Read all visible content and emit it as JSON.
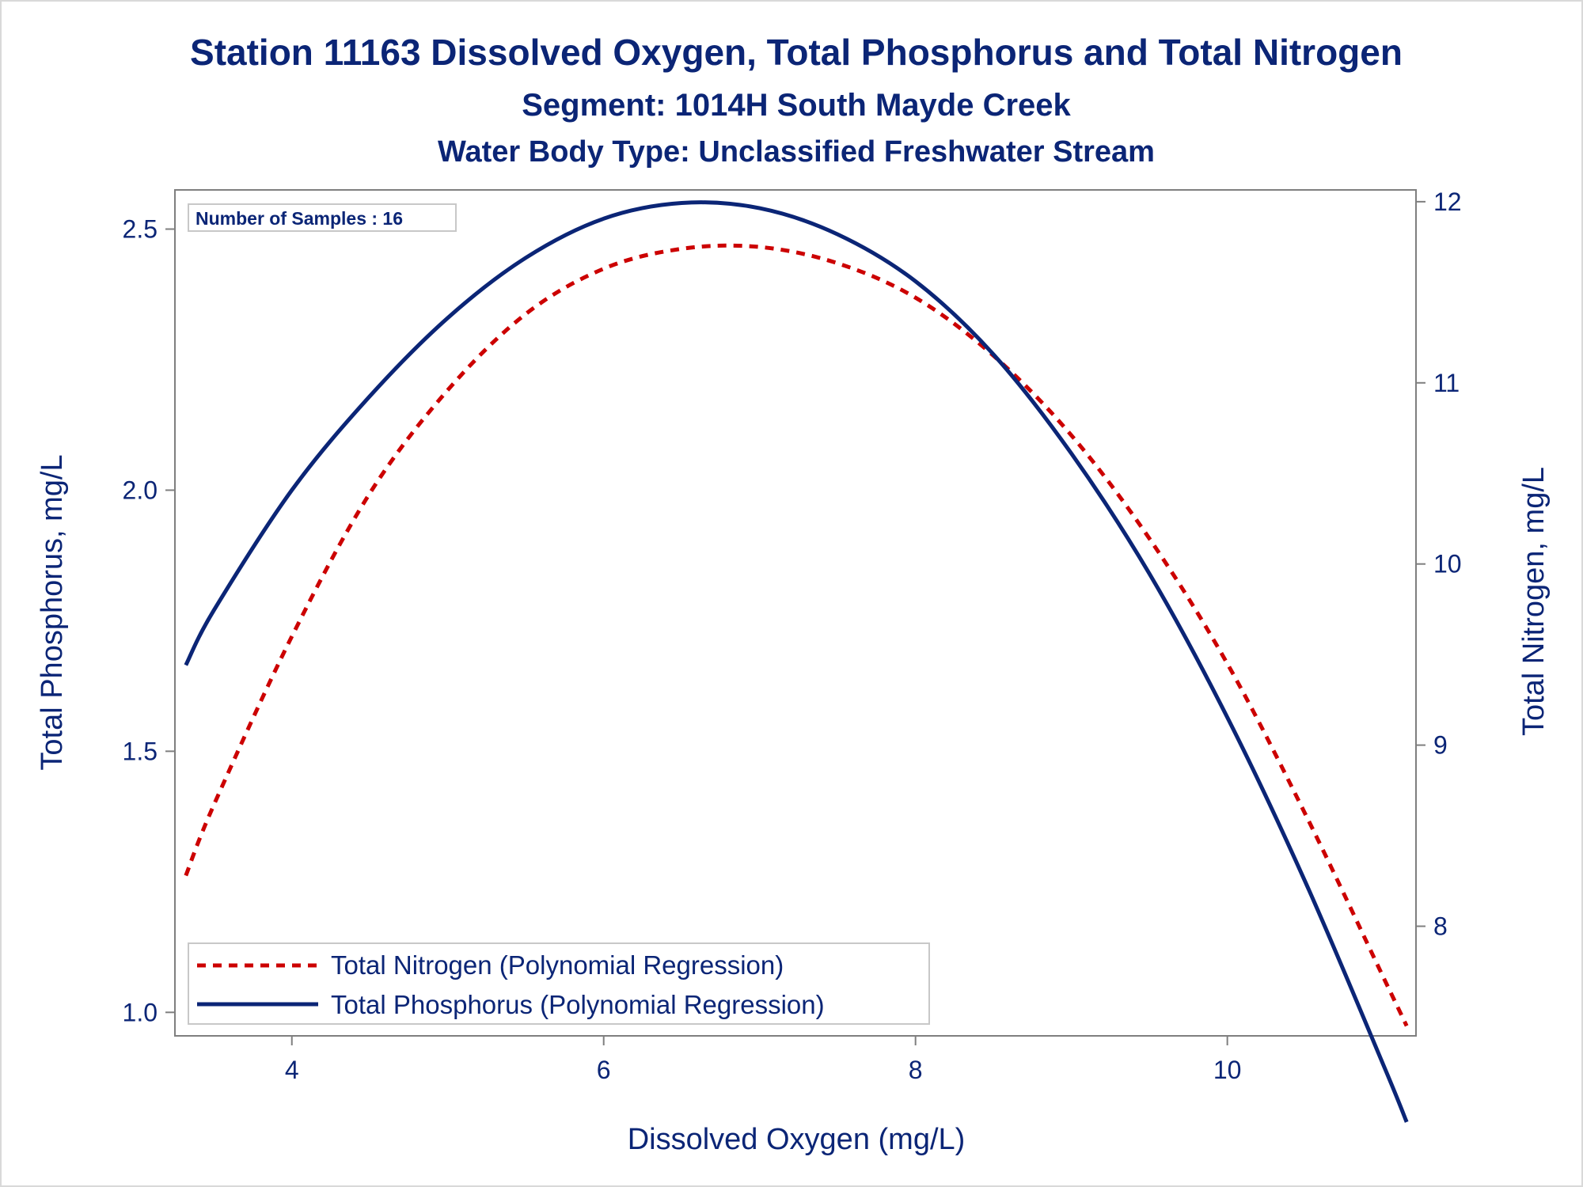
{
  "chart_data": {
    "type": "line",
    "title": "Station 11163  Dissolved Oxygen, Total Phosphorus and Total Nitrogen",
    "subtitle": "Segment: 1014H  South Mayde Creek",
    "subtitle2": "Water Body Type: Unclassified Freshwater Stream",
    "xlabel": "Dissolved Oxygen (mg/L)",
    "ylabel": "Total Phosphorus, mg/L",
    "y2label": "Total Nitrogen, mg/L",
    "xlim": [
      3.25,
      11.21
    ],
    "ylim": [
      0.955,
      2.575
    ],
    "y2lim": [
      7.395,
      12.065
    ],
    "xticks": [
      "4",
      "6",
      "8",
      "10"
    ],
    "xtick_values": [
      4,
      6,
      8,
      10
    ],
    "yticks": [
      "1.0",
      "1.5",
      "2.0",
      "2.5"
    ],
    "ytick_values": [
      1.0,
      1.5,
      2.0,
      2.5
    ],
    "y2ticks": [
      "8",
      "9",
      "10",
      "11",
      "12"
    ],
    "y2tick_values": [
      8,
      9,
      10,
      11,
      12
    ],
    "inset": "Number of Samples : 16",
    "legend_position": "bottom-left",
    "grid": false,
    "series": [
      {
        "name": "Total Nitrogen (Polynomial Regression)",
        "axis": "y2",
        "style": "dashed",
        "color": "#cc0000",
        "x": [
          3.32,
          3.5,
          4.0,
          4.5,
          5.0,
          5.5,
          6.0,
          6.5,
          7.0,
          7.5,
          8.0,
          8.5,
          9.0,
          9.5,
          10.0,
          10.5,
          11.0,
          11.15
        ],
        "y": [
          8.28,
          8.67,
          9.6,
          10.39,
          10.96,
          11.38,
          11.63,
          11.74,
          11.75,
          11.66,
          11.47,
          11.15,
          10.71,
          10.14,
          9.45,
          8.62,
          7.72,
          7.45
        ]
      },
      {
        "name": "Total Phosphorus (Polynomial Regression)",
        "axis": "y",
        "style": "solid",
        "color": "#0b2576",
        "x": [
          3.32,
          3.5,
          4.0,
          4.5,
          5.0,
          5.5,
          6.0,
          6.5,
          7.0,
          7.5,
          8.0,
          8.5,
          9.0,
          9.5,
          10.0,
          10.5,
          11.0,
          11.15
        ],
        "y": [
          1.665,
          1.77,
          2.0,
          2.18,
          2.33,
          2.445,
          2.52,
          2.55,
          2.54,
          2.49,
          2.4,
          2.26,
          2.07,
          1.84,
          1.565,
          1.25,
          0.9,
          0.79
        ]
      }
    ]
  },
  "colors": {
    "text": "#0b2576",
    "axis": "#7f7f7f",
    "nitrogen": "#cc0000",
    "phosphorus": "#0b2576"
  }
}
